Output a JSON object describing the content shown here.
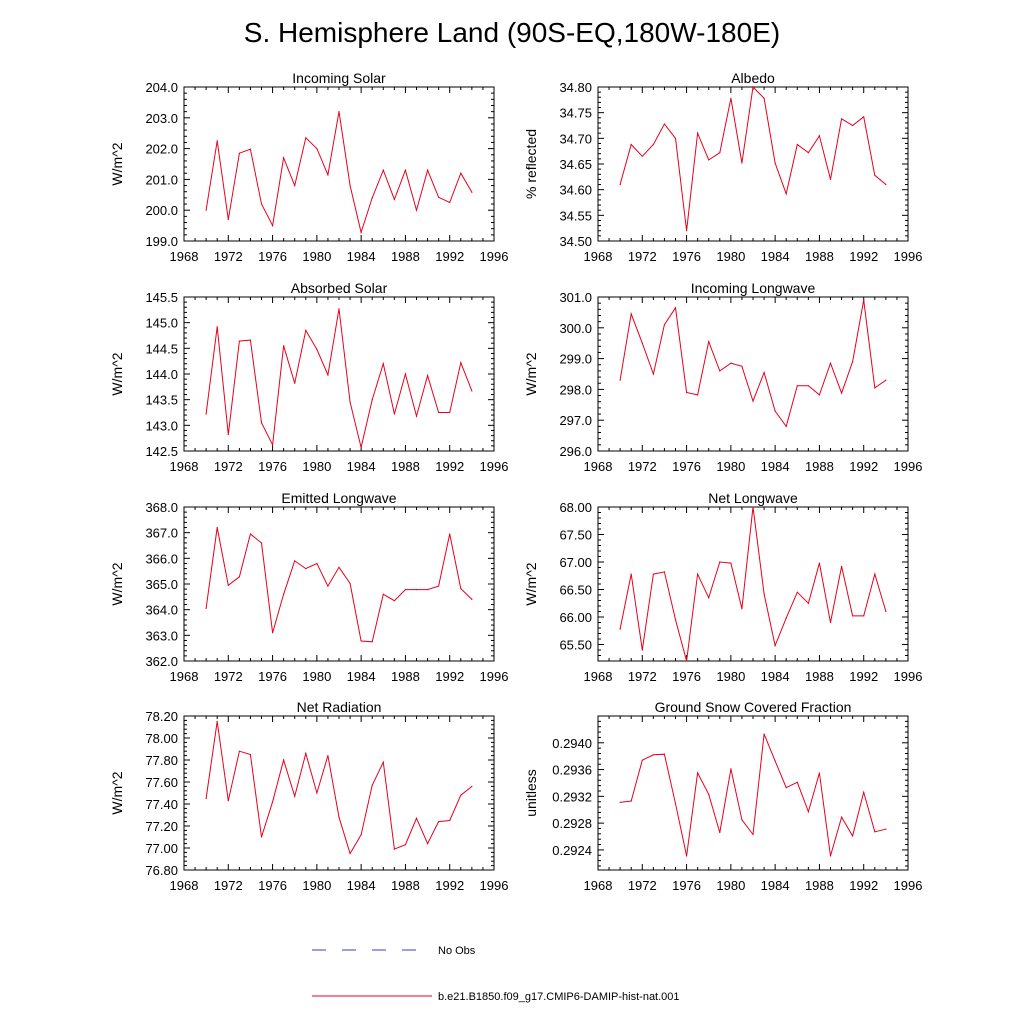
{
  "figure_title": "S. Hemisphere Land (90S-EQ,180W-180E)",
  "legend": [
    {
      "label": "No Obs",
      "color": "#3b3bbf",
      "dashed": true
    },
    {
      "label": "b.e21.B1850.f09_g17.CMIP6-DAMIP-hist-nat.001",
      "color": "#e8001c",
      "dashed": false
    }
  ],
  "chart_data": [
    {
      "type": "line",
      "title": "Incoming Solar",
      "ylabel": "W/m^2",
      "xlim": [
        1968,
        1996
      ],
      "xticks": [
        "1968",
        "1972",
        "1976",
        "1980",
        "1984",
        "1988",
        "1992",
        "1996"
      ],
      "ylim": [
        199.0,
        204.0
      ],
      "yticks": [
        "199.0",
        "200.0",
        "201.0",
        "202.0",
        "203.0",
        "204.0"
      ],
      "series": [
        {
          "color": "#e8001c",
          "x": [
            1970,
            1971,
            1972,
            1973,
            1974,
            1975,
            1976,
            1977,
            1978,
            1979,
            1980,
            1981,
            1982,
            1983,
            1984,
            1985,
            1986,
            1987,
            1988,
            1989,
            1990,
            1991,
            1992,
            1993,
            1994
          ],
          "values": [
            200.0,
            202.25,
            199.7,
            201.85,
            201.98,
            200.2,
            199.5,
            201.7,
            200.8,
            202.35,
            202.0,
            201.15,
            203.2,
            200.8,
            199.28,
            200.4,
            201.3,
            200.35,
            201.3,
            200.0,
            201.3,
            200.42,
            200.25,
            201.2,
            200.58
          ]
        }
      ]
    },
    {
      "type": "line",
      "title": "Albedo",
      "ylabel": "% reflected",
      "xlim": [
        1968,
        1996
      ],
      "xticks": [
        "1968",
        "1972",
        "1976",
        "1980",
        "1984",
        "1988",
        "1992",
        "1996"
      ],
      "ylim": [
        34.5,
        34.8
      ],
      "yticks": [
        "34.50",
        "34.55",
        "34.60",
        "34.65",
        "34.70",
        "34.75",
        "34.80"
      ],
      "series": [
        {
          "color": "#e8001c",
          "x": [
            1970,
            1971,
            1972,
            1973,
            1974,
            1975,
            1976,
            1977,
            1978,
            1979,
            1980,
            1981,
            1982,
            1983,
            1984,
            1985,
            1986,
            1987,
            1988,
            1989,
            1990,
            1991,
            1992,
            1993,
            1994
          ],
          "values": [
            34.61,
            34.688,
            34.665,
            34.688,
            34.728,
            34.7,
            34.52,
            34.71,
            34.658,
            34.672,
            34.778,
            34.652,
            34.8,
            34.778,
            34.652,
            34.592,
            34.688,
            34.672,
            34.705,
            34.62,
            34.738,
            34.725,
            34.742,
            34.628,
            34.61
          ]
        }
      ]
    },
    {
      "type": "line",
      "title": "Absorbed Solar",
      "ylabel": "W/m^2",
      "xlim": [
        1968,
        1996
      ],
      "xticks": [
        "1968",
        "1972",
        "1976",
        "1980",
        "1984",
        "1988",
        "1992",
        "1996"
      ],
      "ylim": [
        142.5,
        145.5
      ],
      "yticks": [
        "142.5",
        "143.0",
        "143.5",
        "144.0",
        "144.5",
        "145.0",
        "145.5"
      ],
      "series": [
        {
          "color": "#e8001c",
          "x": [
            1970,
            1971,
            1972,
            1973,
            1974,
            1975,
            1976,
            1977,
            1978,
            1979,
            1980,
            1981,
            1982,
            1983,
            1984,
            1985,
            1986,
            1987,
            1988,
            1989,
            1990,
            1991,
            1992,
            1993,
            1994
          ],
          "values": [
            143.22,
            144.92,
            142.82,
            144.64,
            144.66,
            143.05,
            142.62,
            144.55,
            143.82,
            144.85,
            144.48,
            143.98,
            145.27,
            143.45,
            142.57,
            143.5,
            144.2,
            143.22,
            144.0,
            143.18,
            143.97,
            143.25,
            143.25,
            144.22,
            143.67
          ]
        }
      ]
    },
    {
      "type": "line",
      "title": "Incoming Longwave",
      "ylabel": "W/m^2",
      "xlim": [
        1968,
        1996
      ],
      "xticks": [
        "1968",
        "1972",
        "1976",
        "1980",
        "1984",
        "1988",
        "1992",
        "1996"
      ],
      "ylim": [
        296.0,
        301.0
      ],
      "yticks": [
        "296.0",
        "297.0",
        "298.0",
        "299.0",
        "300.0",
        "301.0"
      ],
      "series": [
        {
          "color": "#e8001c",
          "x": [
            1970,
            1971,
            1972,
            1973,
            1974,
            1975,
            1976,
            1977,
            1978,
            1979,
            1980,
            1981,
            1982,
            1983,
            1984,
            1985,
            1986,
            1987,
            1988,
            1989,
            1990,
            1991,
            1992,
            1993,
            1994
          ],
          "values": [
            298.3,
            300.45,
            299.5,
            298.5,
            300.1,
            300.65,
            297.9,
            297.82,
            299.55,
            298.6,
            298.85,
            298.75,
            297.62,
            298.55,
            297.3,
            296.8,
            298.12,
            298.12,
            297.82,
            298.85,
            297.88,
            298.9,
            300.9,
            298.05,
            298.3
          ]
        }
      ]
    },
    {
      "type": "line",
      "title": "Emitted Longwave",
      "ylabel": "W/m^2",
      "xlim": [
        1968,
        1996
      ],
      "xticks": [
        "1968",
        "1972",
        "1976",
        "1980",
        "1984",
        "1988",
        "1992",
        "1996"
      ],
      "ylim": [
        362.0,
        368.0
      ],
      "yticks": [
        "362.0",
        "363.0",
        "364.0",
        "365.0",
        "366.0",
        "367.0",
        "368.0"
      ],
      "series": [
        {
          "color": "#e8001c",
          "x": [
            1970,
            1971,
            1972,
            1973,
            1974,
            1975,
            1976,
            1977,
            1978,
            1979,
            1980,
            1981,
            1982,
            1983,
            1984,
            1985,
            1986,
            1987,
            1988,
            1989,
            1990,
            1991,
            1992,
            1993,
            1994
          ],
          "values": [
            364.05,
            367.2,
            364.95,
            365.28,
            366.95,
            366.6,
            363.1,
            364.6,
            365.9,
            365.6,
            365.8,
            364.92,
            365.65,
            365.02,
            362.78,
            362.75,
            364.6,
            364.35,
            364.78,
            364.78,
            364.78,
            364.92,
            366.95,
            364.82,
            364.4
          ]
        }
      ]
    },
    {
      "type": "line",
      "title": "Net Longwave",
      "ylabel": "W/m^2",
      "xlim": [
        1968,
        1996
      ],
      "xticks": [
        "1968",
        "1972",
        "1976",
        "1980",
        "1984",
        "1988",
        "1992",
        "1996"
      ],
      "ylim": [
        65.2,
        68.0
      ],
      "yticks": [
        "65.50",
        "66.00",
        "66.50",
        "67.00",
        "67.50",
        "68.00"
      ],
      "series": [
        {
          "color": "#e8001c",
          "x": [
            1970,
            1971,
            1972,
            1973,
            1974,
            1975,
            1976,
            1977,
            1978,
            1979,
            1980,
            1981,
            1982,
            1983,
            1984,
            1985,
            1986,
            1987,
            1988,
            1989,
            1990,
            1991,
            1992,
            1993,
            1994
          ],
          "values": [
            65.78,
            66.78,
            65.4,
            66.78,
            66.82,
            65.95,
            65.2,
            66.78,
            66.35,
            67.0,
            66.98,
            66.15,
            68.0,
            66.42,
            65.48,
            65.98,
            66.45,
            66.25,
            66.98,
            65.9,
            66.92,
            66.02,
            66.02,
            66.78,
            66.1
          ]
        }
      ]
    },
    {
      "type": "line",
      "title": "Net Radiation",
      "ylabel": "W/m^2",
      "xlim": [
        1968,
        1996
      ],
      "xticks": [
        "1968",
        "1972",
        "1976",
        "1980",
        "1984",
        "1988",
        "1992",
        "1996"
      ],
      "ylim": [
        76.8,
        78.2
      ],
      "yticks": [
        "76.80",
        "77.00",
        "77.20",
        "77.40",
        "77.60",
        "77.80",
        "78.00",
        "78.20"
      ],
      "series": [
        {
          "color": "#e8001c",
          "x": [
            1970,
            1971,
            1972,
            1973,
            1974,
            1975,
            1976,
            1977,
            1978,
            1979,
            1980,
            1981,
            1982,
            1983,
            1984,
            1985,
            1986,
            1987,
            1988,
            1989,
            1990,
            1991,
            1992,
            1993,
            1994
          ],
          "values": [
            77.45,
            78.15,
            77.43,
            77.88,
            77.85,
            77.1,
            77.42,
            77.8,
            77.47,
            77.86,
            77.5,
            77.84,
            77.28,
            76.95,
            77.12,
            77.57,
            77.78,
            76.99,
            77.03,
            77.27,
            77.04,
            77.24,
            77.25,
            77.48,
            77.56
          ]
        }
      ]
    },
    {
      "type": "line",
      "title": "Ground Snow Covered Fraction",
      "ylabel": "unitless",
      "xlim": [
        1968,
        1996
      ],
      "xticks": [
        "1968",
        "1972",
        "1976",
        "1980",
        "1984",
        "1988",
        "1992",
        "1996"
      ],
      "ylim": [
        0.2921,
        0.2944
      ],
      "yticks": [
        "0.2924",
        "0.2928",
        "0.2932",
        "0.2936",
        "0.2940"
      ],
      "series": [
        {
          "color": "#e8001c",
          "x": [
            1970,
            1971,
            1972,
            1973,
            1974,
            1975,
            1976,
            1977,
            1978,
            1979,
            1980,
            1981,
            1982,
            1983,
            1984,
            1985,
            1986,
            1987,
            1988,
            1989,
            1990,
            1991,
            1992,
            1993,
            1994
          ],
          "values": [
            0.29311,
            0.29313,
            0.29374,
            0.29382,
            0.29383,
            0.29309,
            0.29231,
            0.29355,
            0.29323,
            0.29266,
            0.29361,
            0.29285,
            0.29263,
            0.29413,
            0.29373,
            0.29333,
            0.29341,
            0.29297,
            0.29355,
            0.29231,
            0.29289,
            0.29261,
            0.29326,
            0.29267,
            0.29271
          ]
        }
      ]
    }
  ]
}
